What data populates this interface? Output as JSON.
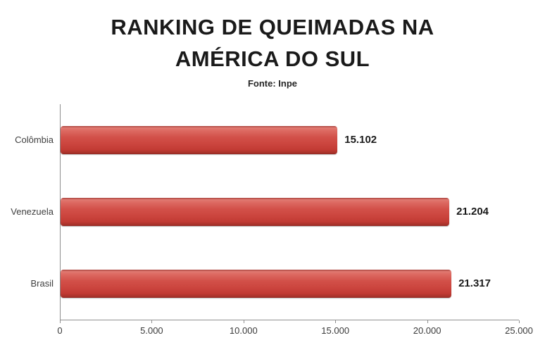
{
  "header": {
    "title": "RANKING DE QUEIMADAS NA AMÉRICA DO SUL",
    "subtitle": "Fonte: Inpe"
  },
  "chart_data": {
    "type": "bar",
    "orientation": "horizontal",
    "title": "RANKING DE QUEIMADAS NA AMÉRICA DO SUL",
    "subtitle": "Fonte: Inpe",
    "categories": [
      "Colômbia",
      "Venezuela",
      "Brasil"
    ],
    "values": [
      15102,
      21204,
      21317
    ],
    "value_labels": [
      "15.102",
      "21.204",
      "21.317"
    ],
    "xlim": [
      0,
      25000
    ],
    "x_ticks": [
      0,
      5000,
      10000,
      15000,
      20000,
      25000
    ],
    "x_tick_labels": [
      "0",
      "5.000",
      "10.000",
      "15.000",
      "20.000",
      "25.000"
    ],
    "xlabel": "",
    "ylabel": "",
    "grid": false,
    "legend": "none",
    "bar_color": "#CC463F",
    "bar_highlight_color": "#E17A72",
    "bar_shadow_color": "#8F2A24",
    "axis_color": "#8F8F8F",
    "text_color": "#1A1A1A"
  }
}
